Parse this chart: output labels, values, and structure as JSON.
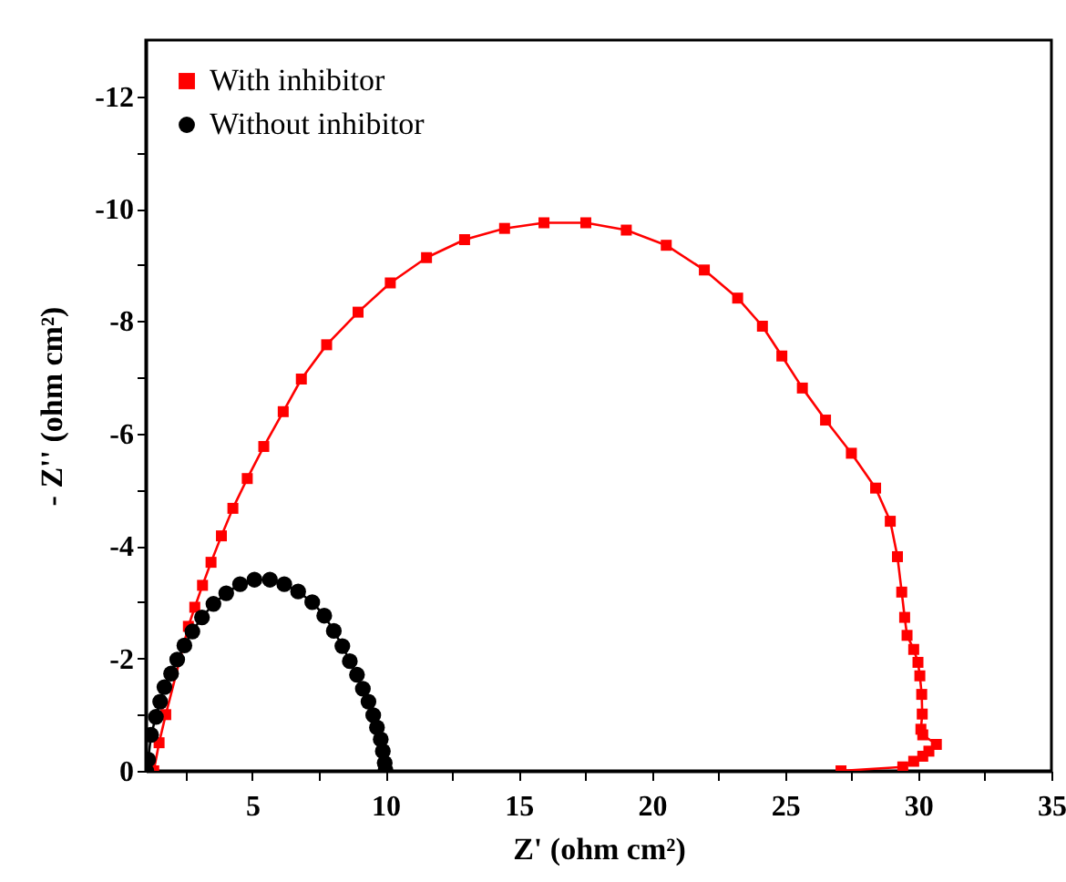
{
  "chart_data": {
    "type": "line",
    "xlabel": "Z' (ohm cm²)",
    "ylabel": "- Z'' (ohm cm²)",
    "xlim": [
      1,
      35
    ],
    "ylim": [
      0,
      -13
    ],
    "xticks": [
      {
        "value": 2.5,
        "label": null
      },
      5,
      {
        "value": 7.5,
        "label": null
      },
      10,
      {
        "value": 12.5,
        "label": null
      },
      15,
      {
        "value": 17.5,
        "label": null
      },
      20,
      {
        "value": 22.5,
        "label": null
      },
      25,
      {
        "value": 27.5,
        "label": null
      },
      30,
      {
        "value": 32.5,
        "label": null
      },
      35
    ],
    "yticks": [
      0,
      {
        "value": -1,
        "label": null
      },
      -2,
      {
        "value": -3,
        "label": null
      },
      -4,
      {
        "value": -5,
        "label": null
      },
      -6,
      {
        "value": -7,
        "label": null
      },
      -8,
      {
        "value": -9,
        "label": null
      },
      -10,
      {
        "value": -11,
        "label": null
      },
      -12
    ],
    "legend": "top left",
    "grid": false,
    "series": [
      {
        "name": "With inhibitor",
        "color": "#ff0000",
        "marker": "square",
        "x": [
          1.3,
          1.5,
          1.75,
          2.6,
          2.84,
          3.13,
          3.45,
          3.84,
          4.27,
          4.81,
          5.43,
          6.16,
          6.84,
          7.79,
          8.97,
          10.18,
          11.54,
          12.97,
          14.47,
          15.95,
          17.52,
          19.04,
          20.54,
          21.97,
          23.22,
          24.15,
          24.88,
          25.65,
          26.52,
          27.49,
          28.4,
          28.95,
          29.22,
          29.38,
          29.49,
          29.58,
          29.83,
          29.99,
          30.06,
          30.13,
          30.15,
          30.1,
          30.17,
          30.68,
          30.4,
          30.17,
          29.83,
          29.42,
          27.1
        ],
        "values": [
          0,
          -0.5,
          -1.0,
          -2.57,
          -2.91,
          -3.3,
          -3.71,
          -4.18,
          -4.67,
          -5.2,
          -5.77,
          -6.39,
          -6.97,
          -7.58,
          -8.16,
          -8.68,
          -9.13,
          -9.45,
          -9.65,
          -9.75,
          -9.75,
          -9.62,
          -9.35,
          -8.91,
          -8.41,
          -7.91,
          -7.38,
          -6.81,
          -6.24,
          -5.65,
          -5.03,
          -4.44,
          -3.81,
          -3.18,
          -2.73,
          -2.41,
          -2.16,
          -1.93,
          -1.69,
          -1.36,
          -1.01,
          -0.74,
          -0.64,
          -0.47,
          -0.35,
          -0.26,
          -0.17,
          -0.07,
          0
        ]
      },
      {
        "name": "Without inhibitor",
        "color": "#000000",
        "marker": "circle",
        "x": [
          1.02,
          1.09,
          1.2,
          1.38,
          1.54,
          1.7,
          1.95,
          2.18,
          2.45,
          2.75,
          3.11,
          3.54,
          4.02,
          4.54,
          5.08,
          5.66,
          6.2,
          6.72,
          7.25,
          7.7,
          8.06,
          8.38,
          8.66,
          8.93,
          9.15,
          9.36,
          9.54,
          9.68,
          9.82,
          9.9,
          9.97,
          10.0
        ],
        "values": [
          0,
          -0.2,
          -0.64,
          -0.96,
          -1.23,
          -1.49,
          -1.73,
          -1.98,
          -2.23,
          -2.48,
          -2.73,
          -2.97,
          -3.16,
          -3.32,
          -3.4,
          -3.4,
          -3.32,
          -3.19,
          -3.0,
          -2.76,
          -2.49,
          -2.22,
          -1.95,
          -1.71,
          -1.46,
          -1.23,
          -0.99,
          -0.77,
          -0.56,
          -0.35,
          -0.14,
          -0.01
        ]
      }
    ]
  }
}
